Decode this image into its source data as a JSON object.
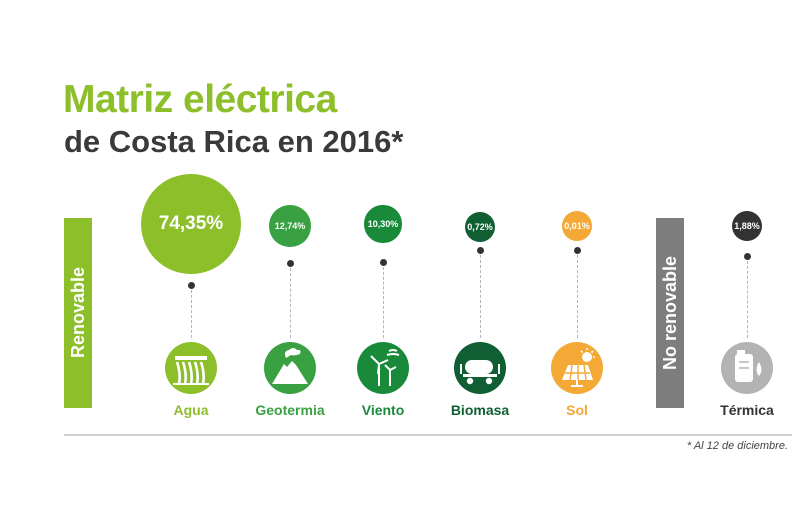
{
  "title": "Matriz eléctrica",
  "subtitle": "de Costa Rica en 2016*",
  "groups": {
    "renewable": "Renovable",
    "non_renewable": "No renovable"
  },
  "footnote": "* Al 12 de diciembre.",
  "colors": {
    "brand_green": "#8cbf2a",
    "title_dark": "#3a3a3a",
    "non_renewable_bar": "#7d7d7d"
  },
  "chart_data": {
    "type": "bubble",
    "title": "Matriz eléctrica",
    "subtitle": "de Costa Rica en 2016*",
    "unit": "%",
    "categories": [
      "Agua",
      "Geotermia",
      "Viento",
      "Biomasa",
      "Sol",
      "Térmica"
    ],
    "values": [
      74.35,
      12.74,
      10.3,
      0.72,
      0.01,
      1.88
    ],
    "value_labels": [
      "74,35%",
      "12,74%",
      "10,30%",
      "0,72%",
      "0,01%",
      "1,88%"
    ],
    "groups": [
      "Renovable",
      "Renovable",
      "Renovable",
      "Renovable",
      "Renovable",
      "No renovable"
    ],
    "icons": [
      "hydro-dam-icon",
      "volcano-icon",
      "wind-turbine-icon",
      "tanker-truck-icon",
      "solar-panel-icon",
      "fuel-tank-icon"
    ],
    "colors": [
      "#8cbf2a",
      "#3aa142",
      "#198a3a",
      "#0f5f33",
      "#f4a836",
      "#333333"
    ],
    "label_colors": [
      "#8cbf2a",
      "#3aa142",
      "#198a3a",
      "#0f5f33",
      "#f4a836",
      "#333333"
    ],
    "icon_colors": [
      "#8cbf2a",
      "#3aa142",
      "#198a3a",
      "#0f5f33",
      "#f4a836",
      "#b3b3b3"
    ]
  }
}
